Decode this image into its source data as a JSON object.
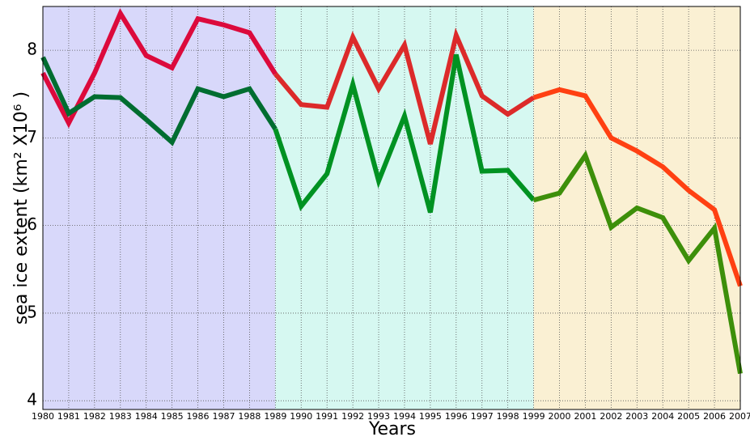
{
  "chart_data": {
    "type": "line",
    "xlabel": "Years",
    "ylabel": "sea ice extent (km² X10⁶ )",
    "x": [
      1980,
      1981,
      1982,
      1983,
      1984,
      1985,
      1986,
      1987,
      1988,
      1989,
      1990,
      1991,
      1992,
      1993,
      1994,
      1995,
      1996,
      1997,
      1998,
      1999,
      2000,
      2001,
      2002,
      2003,
      2004,
      2005,
      2006,
      2007
    ],
    "regions": [
      {
        "xlim": [
          1980,
          1989
        ],
        "color": "#d8d8fa"
      },
      {
        "xlim": [
          1989,
          1999
        ],
        "color": "#d6f8f1"
      },
      {
        "xlim": [
          1999,
          2007
        ],
        "color": "#faf0d3"
      }
    ],
    "series": [
      {
        "colors": [
          "#dc0a3c",
          "#dc2a2a",
          "#ff4012"
        ],
        "values": [
          7.74,
          7.17,
          7.74,
          8.42,
          7.94,
          7.8,
          8.36,
          8.29,
          8.2,
          7.73,
          7.38,
          7.35,
          8.15,
          7.56,
          8.06,
          6.93,
          8.17,
          7.48,
          7.27,
          7.46,
          7.55,
          7.48,
          7.0,
          6.85,
          6.67,
          6.4,
          6.18,
          5.31
        ]
      },
      {
        "colors": [
          "#006d30",
          "#009222",
          "#3d8f0a"
        ],
        "values": [
          7.92,
          7.28,
          7.47,
          7.46,
          7.21,
          6.95,
          7.56,
          7.47,
          7.56,
          7.1,
          6.22,
          6.59,
          7.61,
          6.51,
          7.25,
          6.15,
          7.95,
          6.62,
          6.63,
          6.29,
          6.37,
          6.8,
          5.98,
          6.2,
          6.09,
          5.6,
          5.97,
          4.31
        ]
      }
    ],
    "xlim": [
      1980,
      2007
    ],
    "xticks": [
      1980,
      1981,
      1982,
      1983,
      1984,
      1985,
      1986,
      1987,
      1988,
      1989,
      1990,
      1991,
      1992,
      1993,
      1994,
      1995,
      1996,
      1997,
      1998,
      1999,
      2000,
      2001,
      2002,
      2003,
      2004,
      2005,
      2006,
      2007
    ],
    "ylim": [
      3.9,
      8.5
    ],
    "yticks": [
      4,
      5,
      6,
      7,
      8
    ],
    "grid": true
  }
}
